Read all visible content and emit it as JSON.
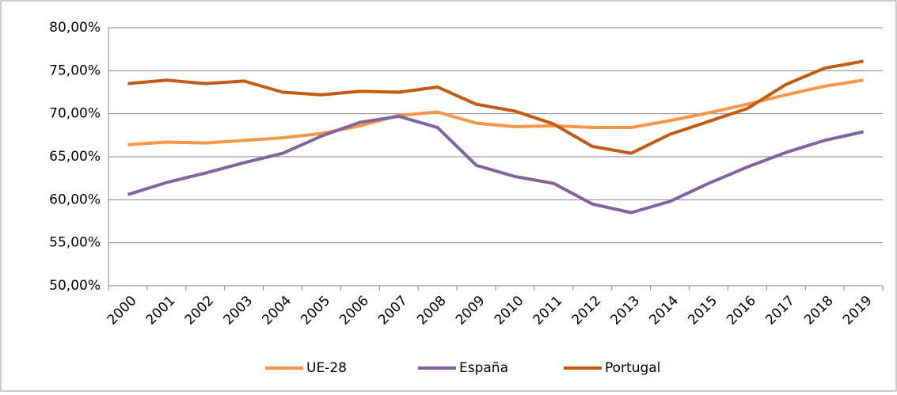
{
  "chart_data": {
    "type": "line",
    "categories": [
      "2000",
      "2001",
      "2002",
      "2003",
      "2004",
      "2005",
      "2006",
      "2007",
      "2008",
      "2009",
      "2010",
      "2011",
      "2012",
      "2013",
      "2014",
      "2015",
      "2016",
      "2017",
      "2018",
      "2019"
    ],
    "series": [
      {
        "name": "UE-28",
        "color": "#f79646",
        "values": [
          66.4,
          66.7,
          66.6,
          66.9,
          67.2,
          67.7,
          68.6,
          69.8,
          70.2,
          68.9,
          68.5,
          68.6,
          68.4,
          68.4,
          69.2,
          70.1,
          71.1,
          72.2,
          73.2,
          73.9
        ]
      },
      {
        "name": "España",
        "color": "#8064a2",
        "values": [
          60.6,
          62.0,
          63.1,
          64.3,
          65.4,
          67.4,
          69.0,
          69.7,
          68.4,
          64.0,
          62.7,
          61.9,
          59.5,
          58.5,
          59.8,
          61.9,
          63.8,
          65.5,
          66.9,
          67.9
        ]
      },
      {
        "name": "Portugal",
        "color": "#c55a11",
        "values": [
          73.5,
          73.9,
          73.5,
          73.8,
          72.5,
          72.2,
          72.6,
          72.5,
          73.1,
          71.1,
          70.3,
          68.8,
          66.2,
          65.4,
          67.6,
          69.1,
          70.6,
          73.4,
          75.3,
          76.1
        ]
      }
    ],
    "ylim": [
      50,
      80
    ],
    "yticks": [
      {
        "value": 50,
        "label": "50,00%"
      },
      {
        "value": 55,
        "label": "55,00%"
      },
      {
        "value": 60,
        "label": "60,00%"
      },
      {
        "value": 65,
        "label": "65,00%"
      },
      {
        "value": 70,
        "label": "70,00%"
      },
      {
        "value": 75,
        "label": "75,00%"
      },
      {
        "value": 80,
        "label": "80,00%"
      }
    ],
    "grid": true,
    "legend": "bottom"
  }
}
